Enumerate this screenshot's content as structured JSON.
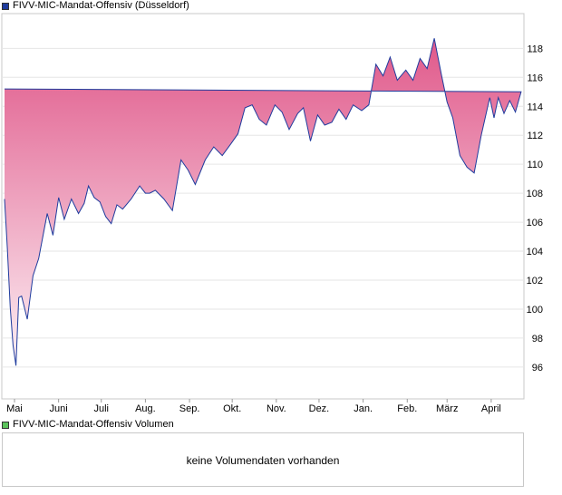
{
  "price_legend": {
    "label": "FIVV-MIC-Mandat-Offensiv (Düsseldorf)",
    "color": "#1f3c9e"
  },
  "volume_legend": {
    "label": "FIVV-MIC-Mandat-Offensiv Volumen",
    "color": "#5cc45c"
  },
  "volume_panel": {
    "message": "keine Volumendaten vorhanden"
  },
  "chart_data": {
    "type": "area",
    "title": "",
    "xlabel": "",
    "ylabel": "",
    "x_tick_labels": [
      "Mai",
      "Juni",
      "Juli",
      "Aug.",
      "Sep.",
      "Okt.",
      "Nov.",
      "Dez.",
      "Jan.",
      "Feb.",
      "März",
      "April"
    ],
    "y_ticks": [
      96,
      98,
      100,
      102,
      104,
      106,
      108,
      110,
      112,
      114,
      116,
      118
    ],
    "ylim": [
      93.8,
      120.4
    ],
    "grid": "horizontal",
    "line_color": "#1f3c9e",
    "fill_top_color": "#e0588a",
    "fill_bottom_color": "#ffffff",
    "series": [
      {
        "x": [
          "Apr 24",
          "Apr 26",
          "Apr 28",
          "Apr 30",
          "May 2",
          "May 4",
          "May 6",
          "May 10",
          "May 14",
          "May 18",
          "May 24",
          "May 28",
          "Jun 1",
          "Jun 5",
          "Jun 10",
          "Jun 15",
          "Jun 19",
          "Jun 22",
          "Jun 26",
          "Jun 30",
          "Jul 4",
          "Jul 8",
          "Jul 12",
          "Jul 16",
          "Jul 22",
          "Jul 28",
          "Aug 1",
          "Aug 4",
          "Aug 8",
          "Aug 14",
          "Aug 20",
          "Aug 26",
          "Aug 31",
          "Sep 5",
          "Sep 12",
          "Sep 18",
          "Sep 24",
          "Sep 30",
          "Oct 5",
          "Oct 10",
          "Oct 15",
          "Oct 20",
          "Oct 25",
          "Oct 31",
          "Nov 5",
          "Nov 10",
          "Nov 16",
          "Nov 20",
          "Nov 25",
          "Nov 30",
          "Dec 5",
          "Dec 10",
          "Dec 15",
          "Dec 20",
          "Dec 25",
          "Dec 31",
          "Jan 5",
          "Jan 10",
          "Jan 15",
          "Jan 20",
          "Jan 25",
          "Jan 31",
          "Feb 5",
          "Feb 10",
          "Feb 15",
          "Feb 20",
          "Feb 25",
          "Mar 1",
          "Mar 5",
          "Mar 10",
          "Mar 15",
          "Mar 20",
          "Mar 25",
          "Mar 31",
          "Apr 3",
          "Apr 6",
          "Apr 10",
          "Apr 14",
          "Apr 18",
          "Apr 22",
          "Apr 24"
        ],
        "values": [
          107.6,
          104.2,
          100.1,
          97.5,
          96.1,
          100.8,
          100.9,
          99.3,
          102.3,
          103.5,
          106.6,
          105.1,
          107.7,
          106.2,
          107.6,
          106.6,
          107.3,
          108.5,
          107.7,
          107.4,
          106.4,
          105.9,
          107.2,
          106.9,
          107.6,
          108.5,
          108.0,
          108.0,
          108.2,
          107.6,
          106.8,
          110.3,
          109.6,
          108.6,
          110.3,
          111.2,
          110.6,
          111.4,
          112.1,
          113.9,
          114.1,
          113.1,
          112.7,
          114.1,
          113.6,
          112.4,
          113.5,
          113.9,
          111.6,
          113.4,
          112.7,
          112.9,
          113.8,
          113.1,
          114.1,
          113.7,
          114.1,
          116.9,
          116.1,
          117.4,
          115.8,
          116.5,
          115.8,
          117.3,
          116.6,
          118.7,
          116.2,
          114.3,
          113.2,
          110.6,
          109.8,
          109.4,
          112.0,
          114.6,
          113.2,
          114.6,
          113.5,
          114.4,
          113.6,
          115.0,
          115.2
        ]
      }
    ]
  }
}
